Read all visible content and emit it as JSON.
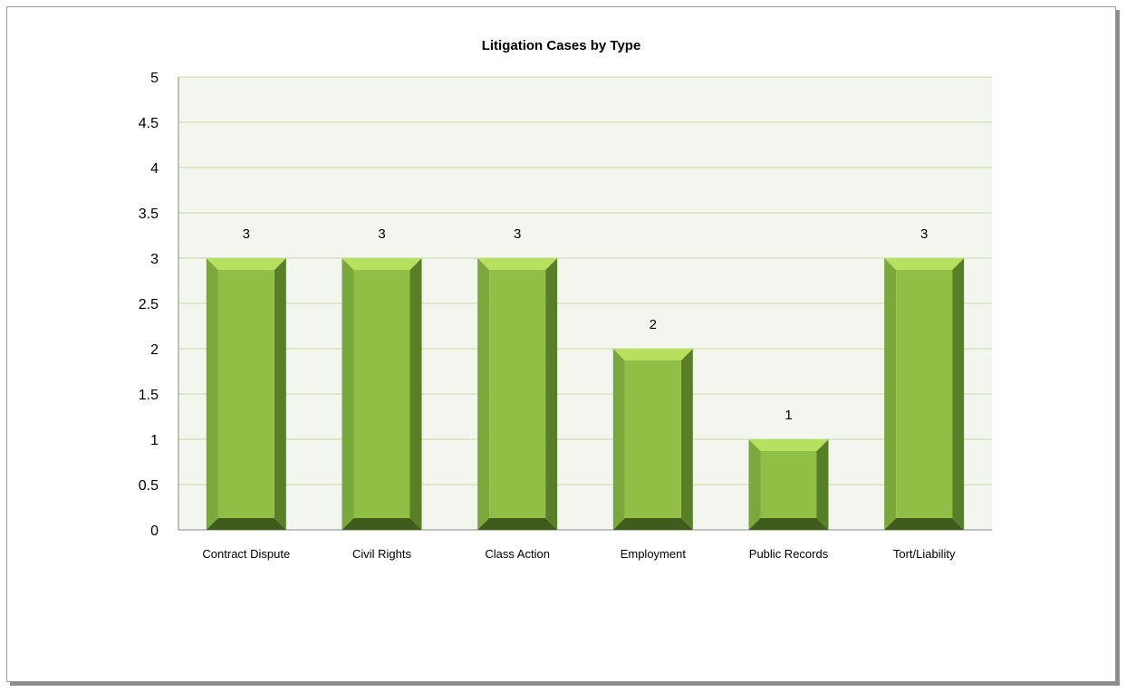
{
  "chart_data": {
    "type": "bar",
    "title": "Litigation Cases by Type",
    "xlabel": "",
    "ylabel": "",
    "categories": [
      "Contract Dispute",
      "Civil Rights",
      "Class Action",
      "Employment",
      "Public Records",
      "Tort/Liability"
    ],
    "values": [
      3,
      3,
      3,
      2,
      1,
      3
    ],
    "data_labels": [
      "3",
      "3",
      "3",
      "2",
      "1",
      "3"
    ],
    "ylim": [
      0,
      5
    ],
    "yticks": [
      "0",
      "0.5",
      "1",
      "1.5",
      "2",
      "2.5",
      "3",
      "3.5",
      "4",
      "4.5",
      "5"
    ],
    "grid": true,
    "legend": "none",
    "colors": {
      "plot_background": "#f3f6ee",
      "gridline": "#c8d6a8",
      "bar_front": "#8fc045",
      "bar_top": "#b7e05e",
      "bar_left": "#7aa83a",
      "bar_right": "#587f28",
      "bar_bottom": "#3f5c1c"
    }
  }
}
